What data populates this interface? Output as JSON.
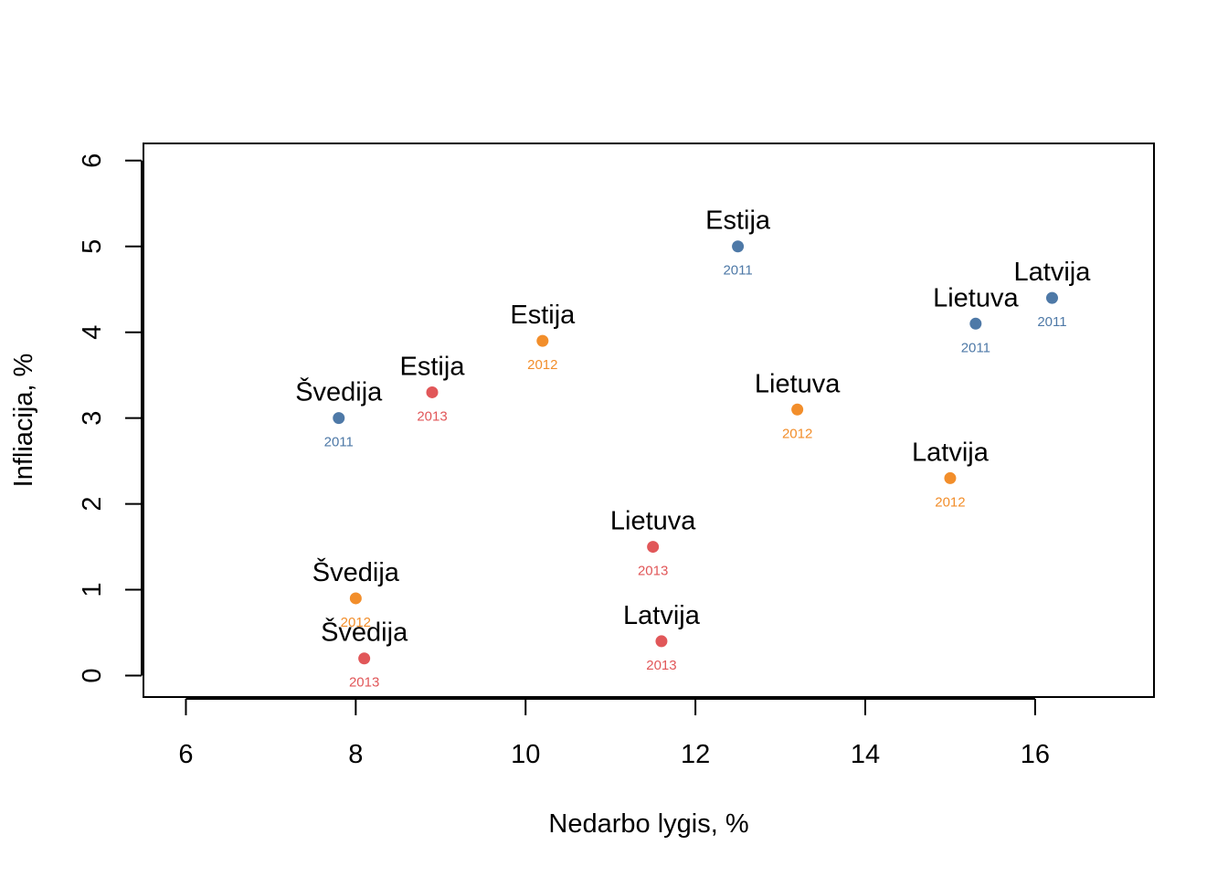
{
  "chart_data": {
    "type": "scatter",
    "title": "",
    "xlabel": "Nedarbo lygis, %",
    "ylabel": "Infliacija, %",
    "xlim": [
      5.5,
      17.4
    ],
    "ylim": [
      -0.25,
      6.2
    ],
    "xticks": [
      6,
      8,
      10,
      12,
      14,
      16
    ],
    "yticks": [
      0,
      1,
      2,
      3,
      4,
      5,
      6
    ],
    "grid": false,
    "series": [
      {
        "name": "2011",
        "color": "#4E79A7",
        "points": [
          {
            "label": "Švedija",
            "year": "2011",
            "x": 7.8,
            "y": 3.0
          },
          {
            "label": "Estija",
            "year": "2011",
            "x": 12.5,
            "y": 5.0
          },
          {
            "label": "Lietuva",
            "year": "2011",
            "x": 15.3,
            "y": 4.1
          },
          {
            "label": "Latvija",
            "year": "2011",
            "x": 16.2,
            "y": 4.4
          }
        ]
      },
      {
        "name": "2012",
        "color": "#F28E2B",
        "points": [
          {
            "label": "Švedija",
            "year": "2012",
            "x": 8.0,
            "y": 0.9
          },
          {
            "label": "Estija",
            "year": "2012",
            "x": 10.2,
            "y": 3.9
          },
          {
            "label": "Lietuva",
            "year": "2012",
            "x": 13.2,
            "y": 3.1
          },
          {
            "label": "Latvija",
            "year": "2012",
            "x": 15.0,
            "y": 2.3
          }
        ]
      },
      {
        "name": "2013",
        "color": "#E15759",
        "points": [
          {
            "label": "Švedija",
            "year": "2013",
            "x": 8.1,
            "y": 0.2
          },
          {
            "label": "Estija",
            "year": "2013",
            "x": 8.9,
            "y": 3.3
          },
          {
            "label": "Lietuva",
            "year": "2013",
            "x": 11.5,
            "y": 1.5
          },
          {
            "label": "Latvija",
            "year": "2013",
            "x": 11.6,
            "y": 0.4
          }
        ]
      }
    ]
  }
}
